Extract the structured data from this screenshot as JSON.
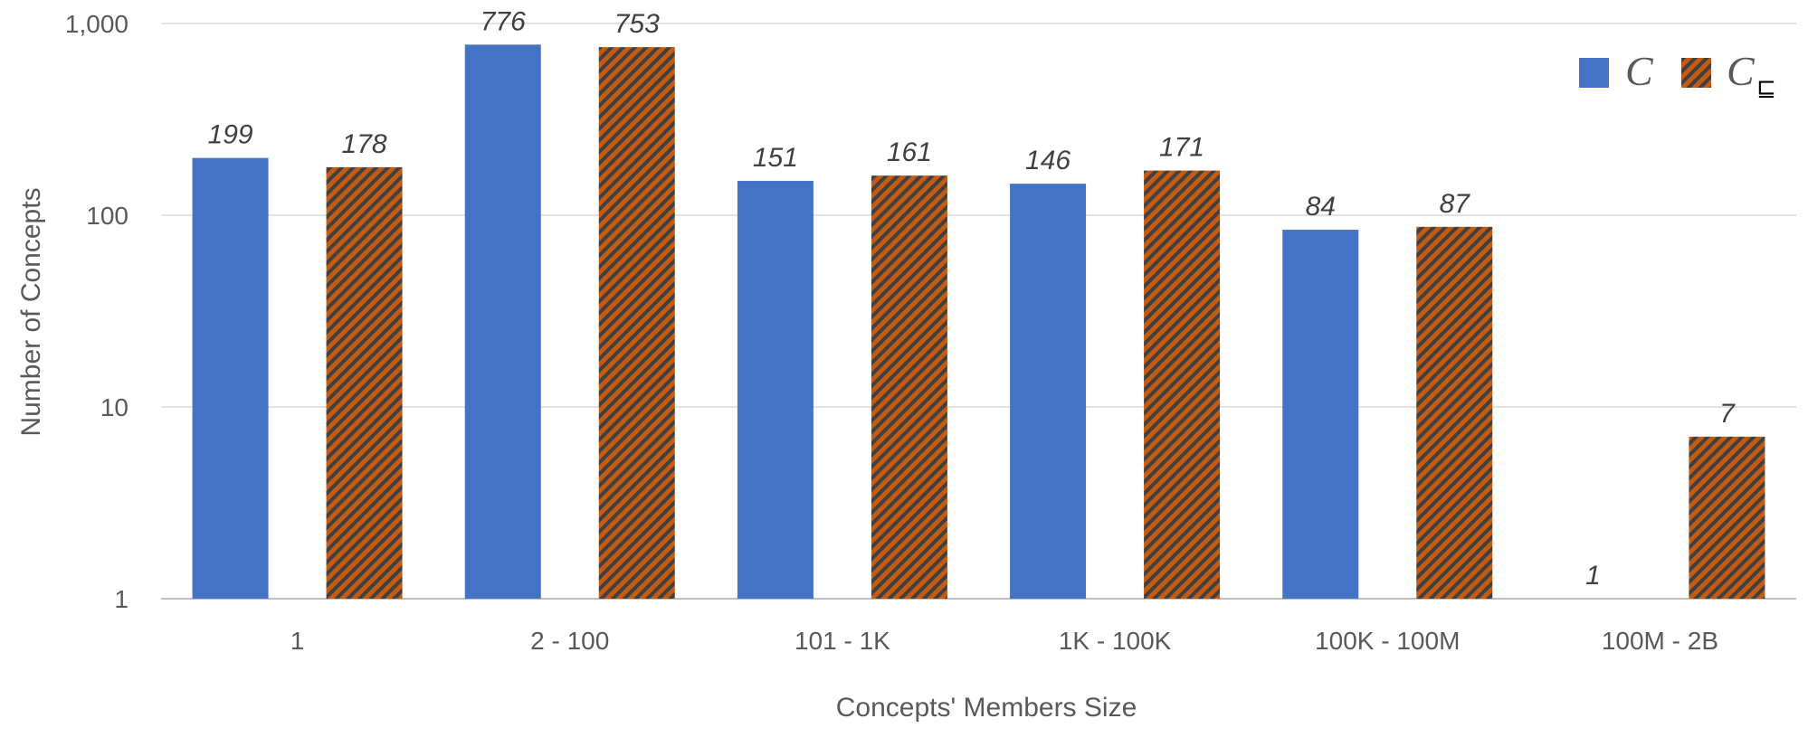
{
  "chart_data": {
    "type": "bar",
    "title": "",
    "xlabel": "Concepts' Members Size",
    "ylabel": "Number of Concepts",
    "yscale": "log",
    "ylim": [
      1,
      1000
    ],
    "yticks": [
      "1",
      "10",
      "100",
      "1,000"
    ],
    "grid": true,
    "legend_position": "top-right",
    "categories": [
      "1",
      "2 - 100",
      "101 - 1K",
      "1K - 100K",
      "100K - 100M",
      "100M - 2B"
    ],
    "series": [
      {
        "name": "C",
        "values": [
          199,
          776,
          151,
          146,
          84,
          1
        ],
        "color": "#4472c4",
        "pattern": "solid"
      },
      {
        "name": "C",
        "subscript": "⊑",
        "values": [
          178,
          753,
          161,
          171,
          87,
          7
        ],
        "color": "#c55a11",
        "pattern": "diagonal-hatch"
      }
    ]
  }
}
